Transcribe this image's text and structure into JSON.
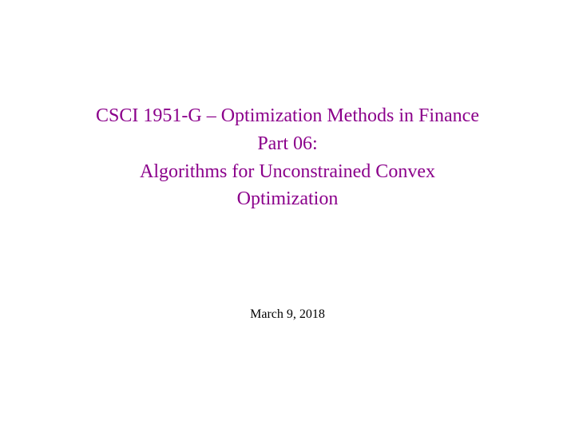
{
  "slide": {
    "title_color": "#8b008b",
    "date_color": "#000000",
    "background_color": "#ffffff",
    "title_fontsize": 24,
    "date_fontsize": 16,
    "lines": [
      "CSCI 1951-G – Optimization Methods in Finance",
      "Part 06:",
      "Algorithms for Unconstrained Convex",
      "Optimization"
    ],
    "date": "March 9, 2018"
  }
}
